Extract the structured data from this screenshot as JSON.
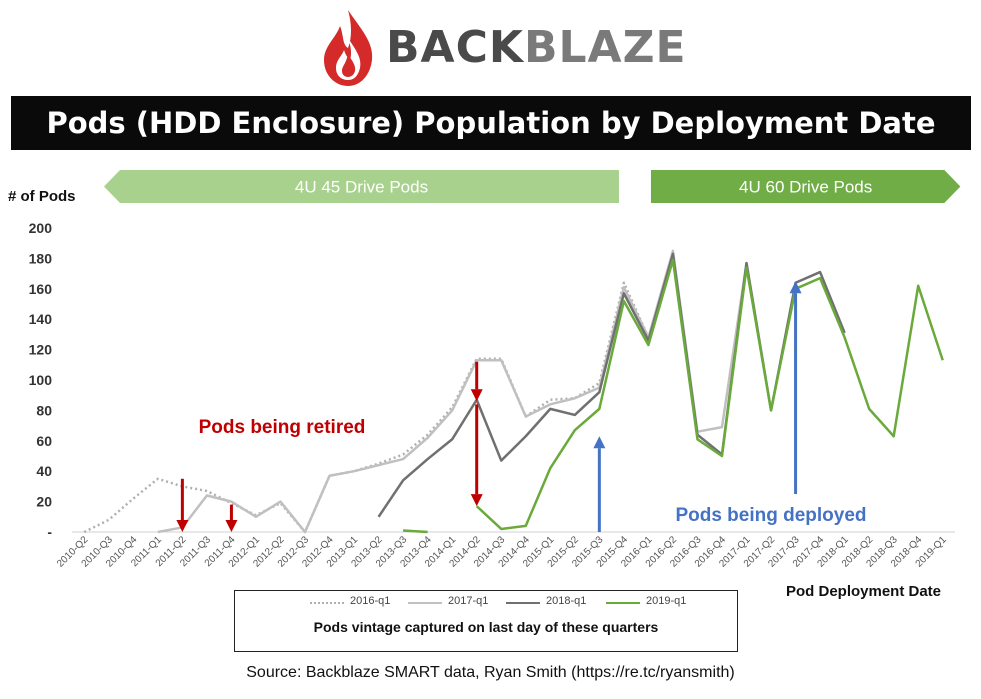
{
  "header": {
    "brand": "BACKBLAZE",
    "brand_part1": "BACK",
    "brand_part2": "BLAZE",
    "title": "Pods (HDD Enclosure) Population by Deployment Date"
  },
  "colors": {
    "s2016": "#b0b0b0",
    "s2017": "#c0c0c0",
    "s2018": "#707070",
    "s2019": "#6aaa3a",
    "banner45": "#a9d18e",
    "banner60": "#70ad47",
    "retired": "#c00000",
    "deployed": "#4472c4"
  },
  "banners": [
    {
      "label": "4U 45 Drive Pods",
      "from": 0,
      "to": 22.3
    },
    {
      "label": "4U 60 Drive Pods",
      "from": 22.3,
      "to": 36.3
    }
  ],
  "annotations": {
    "retired": "Pods being retired",
    "deployed": "Pods being deployed"
  },
  "arrows": {
    "retired": [
      {
        "x": 4,
        "from": 35,
        "to": 0
      },
      {
        "x": 6,
        "from": 18,
        "to": 0
      },
      {
        "x": 16,
        "from": 112,
        "to": 86
      },
      {
        "x": 16,
        "from": 84,
        "to": 17
      }
    ],
    "deployed": [
      {
        "x": 21,
        "from": 0,
        "to": 63
      },
      {
        "x": 29,
        "from": 25,
        "to": 165
      }
    ]
  },
  "legend_caption": "Pods vintage captured on last day of these quarters",
  "source": "Source: Backblaze SMART data, Ryan Smith (https://re.tc/ryansmith)",
  "chart_data": {
    "type": "line",
    "ylabel": "# of Pods",
    "xlabel": "Pod Deployment Date",
    "ylim": [
      0,
      200
    ],
    "y_ticks": [
      0,
      20,
      40,
      60,
      80,
      100,
      120,
      140,
      160,
      180,
      200
    ],
    "y_tick_labels": [
      "-",
      "20",
      "40",
      "60",
      "80",
      "100",
      "120",
      "140",
      "160",
      "180",
      "200"
    ],
    "grid": false,
    "legend_position": "bottom",
    "categories": [
      "2010-Q2",
      "2010-Q3",
      "2010-Q4",
      "2011-Q1",
      "2011-Q2",
      "2011-Q3",
      "2011-Q4",
      "2012-Q1",
      "2012-Q2",
      "2012-Q3",
      "2012-Q4",
      "2013-Q1",
      "2013-Q2",
      "2013-Q3",
      "2013-Q4",
      "2014-Q1",
      "2014-Q2",
      "2014-Q3",
      "2014-Q4",
      "2015-Q1",
      "2015-Q2",
      "2015-Q3",
      "2015-Q4",
      "2016-Q1",
      "2016-Q2",
      "2016-Q3",
      "2016-Q4",
      "2017-Q1",
      "2017-Q2",
      "2017-Q3",
      "2017-Q4",
      "2018-Q1",
      "2018-Q2",
      "2018-Q3",
      "2018-Q4",
      "2019-Q1"
    ],
    "series": [
      {
        "name": "2016-q1",
        "style": "dotted",
        "values": [
          0,
          8,
          22,
          35,
          30,
          27,
          19,
          11,
          19,
          0,
          37,
          40,
          45,
          51,
          64,
          82,
          114,
          114,
          76,
          87,
          88,
          98,
          164,
          128,
          null,
          null,
          null,
          null,
          null,
          null,
          null,
          null,
          null,
          null,
          null,
          null
        ]
      },
      {
        "name": "2017-q1",
        "style": "solid",
        "values": [
          null,
          null,
          null,
          0,
          3,
          24,
          20,
          10,
          20,
          0,
          37,
          40,
          44,
          48,
          62,
          80,
          113,
          113,
          76,
          84,
          88,
          95,
          161,
          128,
          185,
          66,
          69,
          177,
          null,
          null,
          null,
          null,
          null,
          null,
          null,
          null
        ]
      },
      {
        "name": "2018-q1",
        "style": "solid",
        "values": [
          null,
          null,
          null,
          null,
          null,
          null,
          null,
          null,
          null,
          null,
          null,
          null,
          10,
          34,
          48,
          61,
          87,
          47,
          63,
          81,
          77,
          92,
          157,
          126,
          183,
          64,
          51,
          177,
          80,
          164,
          171,
          131,
          null,
          null,
          null,
          null
        ]
      },
      {
        "name": "2019-q1",
        "style": "solid",
        "values": [
          null,
          null,
          null,
          null,
          null,
          null,
          null,
          null,
          null,
          null,
          null,
          null,
          null,
          1,
          0,
          null,
          17,
          2,
          4,
          42,
          67,
          81,
          152,
          123,
          179,
          61,
          50,
          174,
          80,
          160,
          167,
          128,
          81,
          63,
          162,
          113
        ]
      }
    ]
  }
}
